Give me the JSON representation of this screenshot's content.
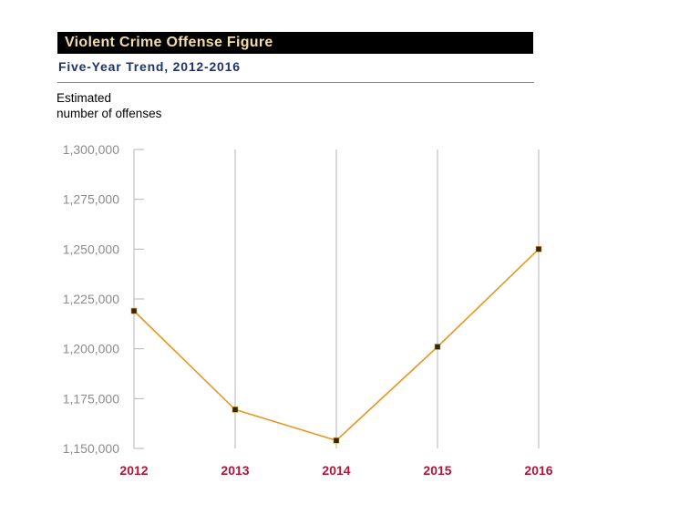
{
  "header": {
    "title": "Violent Crime Offense Figure",
    "subtitle": "Five-Year Trend, 2012-2016"
  },
  "colors": {
    "title_bg": "#000000",
    "title_text": "#f3dda6",
    "subtitle_text": "#1f3270",
    "line": "#e8961e",
    "marker": "#2a2a10",
    "x_tick_text": "#b0163a",
    "y_tick_text": "#8c8c8c",
    "grid": "#b5b5b5"
  },
  "chart_data": {
    "type": "line",
    "title": "Violent Crime Offense Figure",
    "subtitle": "Five-Year Trend, 2012-2016",
    "ylabel_lines": [
      "Estimated",
      "number of offenses"
    ],
    "xlabel": "",
    "categories": [
      "2012",
      "2013",
      "2014",
      "2015",
      "2016"
    ],
    "series": [
      {
        "values": [
          1219000,
          1169500,
          1154000,
          1201000,
          1250000
        ]
      }
    ],
    "ylim": [
      1150000,
      1300000
    ],
    "yticks": [
      1150000,
      1175000,
      1200000,
      1225000,
      1250000,
      1275000,
      1300000
    ],
    "ytick_labels": [
      "1,150,000",
      "1,175,000",
      "1,200,000",
      "1,225,000",
      "1,250,000",
      "1,275,000",
      "1,300,000"
    ],
    "grid": "vertical",
    "markers": "square"
  }
}
